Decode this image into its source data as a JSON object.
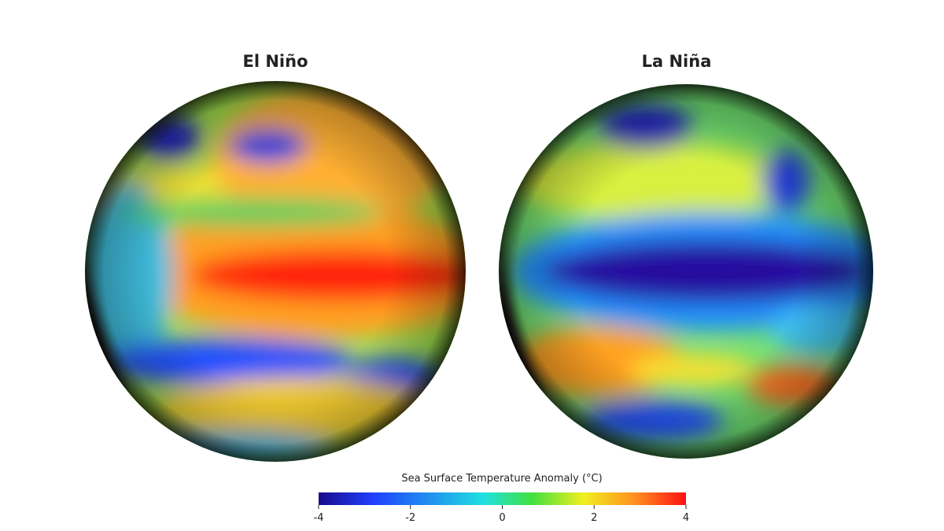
{
  "panels": [
    {
      "title": "El Niño"
    },
    {
      "title": "La Niña"
    }
  ],
  "colorbar": {
    "label": "Sea Surface Temperature Anomaly (°C)",
    "range": [
      -4,
      4
    ],
    "ticks": [
      -4,
      -2,
      0,
      2,
      4
    ]
  }
}
